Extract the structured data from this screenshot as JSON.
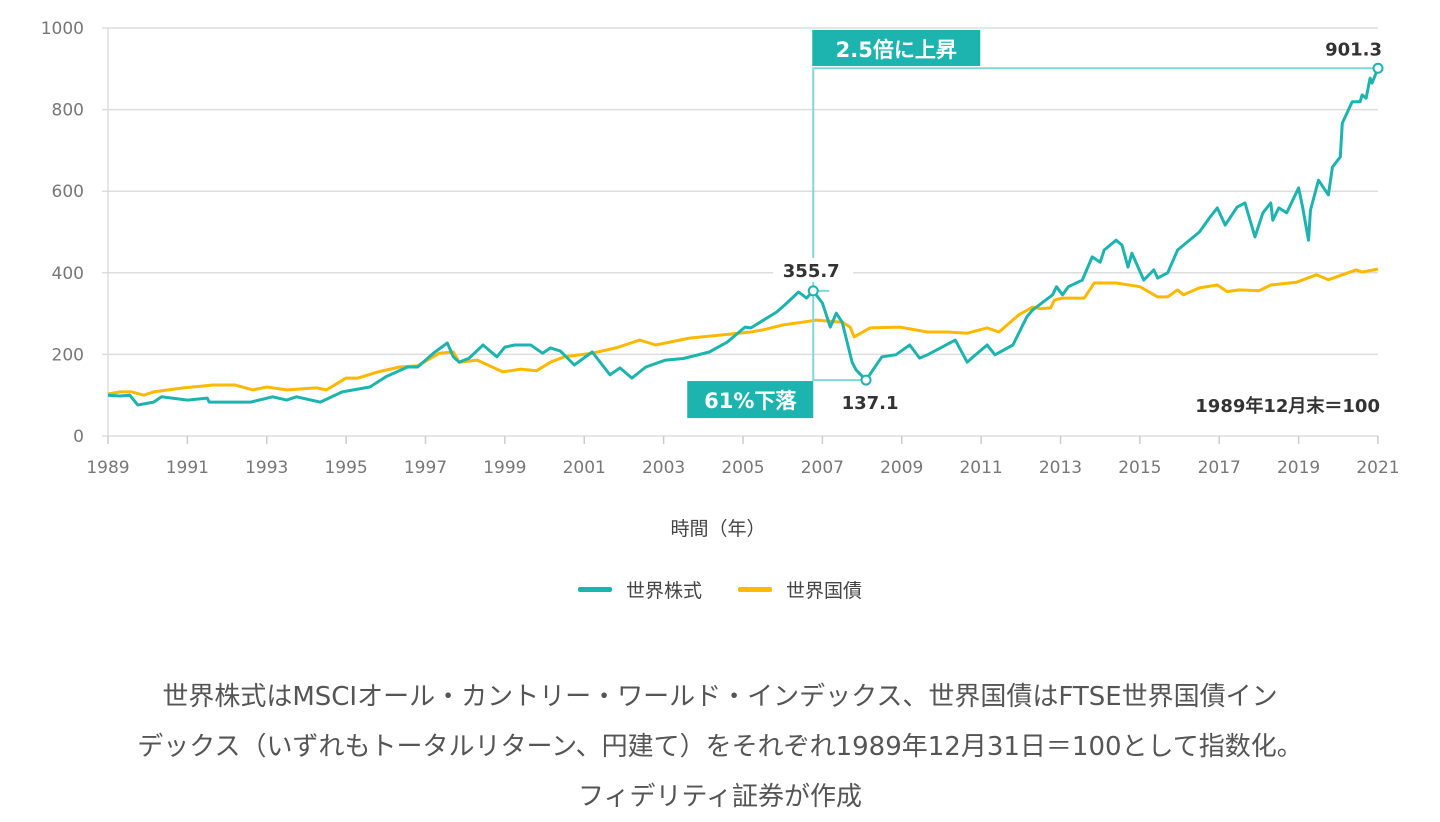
{
  "chart_data": {
    "type": "line",
    "title": "",
    "xlabel": "時間（年）",
    "ylabel": "",
    "xlim": [
      1989,
      2021
    ],
    "ylim": [
      0,
      1000
    ],
    "x_ticks": [
      "1989",
      "1991",
      "1993",
      "1995",
      "1997",
      "1999",
      "2001",
      "2003",
      "2005",
      "2007",
      "2009",
      "2011",
      "2013",
      "2015",
      "2017",
      "2019",
      "2021"
    ],
    "y_ticks": [
      "0",
      "200",
      "400",
      "600",
      "800",
      "1000"
    ],
    "grid": "horizontal",
    "legend_position": "bottom",
    "colors": {
      "stocks": "#1db3ae",
      "bonds": "#ffb800",
      "annotation_line": "#7fd8d6"
    },
    "series": [
      {
        "name": "世界株式",
        "points": [
          [
            1989.0,
            100
          ],
          [
            1989.3,
            98
          ],
          [
            1989.55,
            100
          ],
          [
            1989.75,
            76
          ],
          [
            1990.15,
            83
          ],
          [
            1990.35,
            96
          ],
          [
            1991.0,
            88
          ],
          [
            1991.5,
            93
          ],
          [
            1991.55,
            83
          ],
          [
            1992.6,
            83
          ],
          [
            1993.15,
            96
          ],
          [
            1993.5,
            88
          ],
          [
            1993.75,
            96
          ],
          [
            1994.35,
            83
          ],
          [
            1994.9,
            108
          ],
          [
            1995.6,
            120
          ],
          [
            1996.0,
            145
          ],
          [
            1996.55,
            169
          ],
          [
            1996.8,
            169
          ],
          [
            1997.2,
            203
          ],
          [
            1997.55,
            228
          ],
          [
            1997.7,
            194
          ],
          [
            1997.85,
            181
          ],
          [
            1998.1,
            191
          ],
          [
            1998.45,
            223
          ],
          [
            1998.8,
            194
          ],
          [
            1999.0,
            218
          ],
          [
            1999.25,
            223
          ],
          [
            1999.65,
            223
          ],
          [
            1999.95,
            203
          ],
          [
            2000.15,
            216
          ],
          [
            2000.4,
            208
          ],
          [
            2000.75,
            174
          ],
          [
            2001.2,
            206
          ],
          [
            2001.65,
            150
          ],
          [
            2001.9,
            167
          ],
          [
            2002.2,
            142
          ],
          [
            2002.55,
            169
          ],
          [
            2003.05,
            186
          ],
          [
            2003.5,
            190
          ],
          [
            2004.15,
            206
          ],
          [
            2004.6,
            230
          ],
          [
            2005.05,
            267
          ],
          [
            2005.2,
            265
          ],
          [
            2005.85,
            304
          ],
          [
            2006.05,
            321
          ],
          [
            2006.4,
            353
          ],
          [
            2006.6,
            338
          ],
          [
            2006.77,
            355.7
          ],
          [
            2007.0,
            326
          ],
          [
            2007.2,
            267
          ],
          [
            2007.35,
            301
          ],
          [
            2007.5,
            279
          ],
          [
            2007.75,
            181
          ],
          [
            2007.85,
            162
          ],
          [
            2008.1,
            137.1
          ],
          [
            2008.5,
            194
          ],
          [
            2008.85,
            199
          ],
          [
            2009.2,
            223
          ],
          [
            2009.45,
            191
          ],
          [
            2009.65,
            199
          ],
          [
            2010.35,
            235
          ],
          [
            2010.65,
            181
          ],
          [
            2010.8,
            194
          ],
          [
            2011.15,
            223
          ],
          [
            2011.35,
            199
          ],
          [
            2011.8,
            223
          ],
          [
            2012.15,
            292
          ],
          [
            2012.3,
            309
          ],
          [
            2012.8,
            346
          ],
          [
            2012.9,
            366
          ],
          [
            2013.05,
            346
          ],
          [
            2013.2,
            366
          ],
          [
            2013.55,
            382
          ],
          [
            2013.8,
            439
          ],
          [
            2014.0,
            426
          ],
          [
            2014.1,
            456
          ],
          [
            2014.4,
            480
          ],
          [
            2014.55,
            468
          ],
          [
            2014.7,
            414
          ],
          [
            2014.8,
            448
          ],
          [
            2015.1,
            382
          ],
          [
            2015.35,
            407
          ],
          [
            2015.45,
            387
          ],
          [
            2015.7,
            400
          ],
          [
            2015.95,
            456
          ],
          [
            2016.5,
            500
          ],
          [
            2016.75,
            534
          ],
          [
            2016.95,
            559
          ],
          [
            2017.15,
            517
          ],
          [
            2017.45,
            561
          ],
          [
            2017.65,
            571
          ],
          [
            2017.9,
            488
          ],
          [
            2018.1,
            547
          ],
          [
            2018.3,
            571
          ],
          [
            2018.35,
            529
          ],
          [
            2018.5,
            559
          ],
          [
            2018.7,
            547
          ],
          [
            2019.0,
            608
          ],
          [
            2019.1,
            561
          ],
          [
            2019.25,
            480
          ],
          [
            2019.3,
            554
          ],
          [
            2019.5,
            627
          ],
          [
            2019.75,
            591
          ],
          [
            2019.85,
            659
          ],
          [
            2020.05,
            684
          ],
          [
            2020.1,
            767
          ],
          [
            2020.35,
            819
          ],
          [
            2020.55,
            819
          ],
          [
            2020.6,
            836
          ],
          [
            2020.7,
            828
          ],
          [
            2020.8,
            877
          ],
          [
            2020.85,
            865
          ],
          [
            2021.0,
            901.3
          ]
        ]
      },
      {
        "name": "世界国債",
        "points": [
          [
            1989.0,
            103
          ],
          [
            1989.3,
            108
          ],
          [
            1989.6,
            108
          ],
          [
            1989.9,
            100
          ],
          [
            1990.15,
            108
          ],
          [
            1990.9,
            118
          ],
          [
            1991.65,
            125
          ],
          [
            1992.2,
            125
          ],
          [
            1992.65,
            113
          ],
          [
            1993.0,
            120
          ],
          [
            1993.5,
            113
          ],
          [
            1994.25,
            118
          ],
          [
            1994.5,
            113
          ],
          [
            1995.0,
            142
          ],
          [
            1995.3,
            142
          ],
          [
            1995.8,
            157
          ],
          [
            1996.35,
            169
          ],
          [
            1996.8,
            172
          ],
          [
            1997.35,
            203
          ],
          [
            1997.7,
            206
          ],
          [
            1997.85,
            181
          ],
          [
            1998.3,
            186
          ],
          [
            1998.95,
            157
          ],
          [
            1999.4,
            164
          ],
          [
            1999.8,
            160
          ],
          [
            2000.15,
            181
          ],
          [
            2000.5,
            194
          ],
          [
            2001.2,
            203
          ],
          [
            2001.8,
            216
          ],
          [
            2002.4,
            235
          ],
          [
            2002.8,
            223
          ],
          [
            2003.65,
            240
          ],
          [
            2004.2,
            245
          ],
          [
            2005.2,
            255
          ],
          [
            2005.5,
            260
          ],
          [
            2006.0,
            272
          ],
          [
            2006.5,
            279
          ],
          [
            2006.85,
            284
          ],
          [
            2007.5,
            279
          ],
          [
            2007.7,
            267
          ],
          [
            2007.8,
            243
          ],
          [
            2008.2,
            265
          ],
          [
            2008.95,
            267
          ],
          [
            2009.65,
            255
          ],
          [
            2010.15,
            255
          ],
          [
            2010.65,
            252
          ],
          [
            2011.15,
            265
          ],
          [
            2011.45,
            255
          ],
          [
            2011.95,
            297
          ],
          [
            2012.3,
            316
          ],
          [
            2012.5,
            312
          ],
          [
            2012.75,
            314
          ],
          [
            2012.85,
            333
          ],
          [
            2013.05,
            338
          ],
          [
            2013.6,
            338
          ],
          [
            2013.85,
            375
          ],
          [
            2014.4,
            375
          ],
          [
            2015.0,
            366
          ],
          [
            2015.45,
            341
          ],
          [
            2015.7,
            341
          ],
          [
            2015.95,
            358
          ],
          [
            2016.1,
            346
          ],
          [
            2016.5,
            363
          ],
          [
            2016.95,
            370
          ],
          [
            2017.2,
            354
          ],
          [
            2017.5,
            358
          ],
          [
            2018.0,
            356
          ],
          [
            2018.3,
            370
          ],
          [
            2018.95,
            377
          ],
          [
            2019.45,
            395
          ],
          [
            2019.75,
            383
          ],
          [
            2020.1,
            395
          ],
          [
            2020.45,
            407
          ],
          [
            2020.6,
            402
          ],
          [
            2021.0,
            409
          ]
        ]
      }
    ],
    "annotations": {
      "rise_label": "2.5倍に上昇",
      "fall_label": "61%下落",
      "peak_value": "355.7",
      "trough_value": "137.1",
      "end_value": "901.3",
      "base_note": "1989年12月末＝100",
      "peak": [
        2006.77,
        355.7
      ],
      "trough": [
        2008.1,
        137.1
      ],
      "end": [
        2021.0,
        901.3
      ]
    }
  },
  "caption": {
    "lines": [
      "世界株式はMSCIオール・カントリー・ワールド・インデックス、世界国債はFTSE世界国債イン",
      "デックス（いずれもトータルリターン、円建て）をそれぞれ1989年12月31日＝100として指数化。",
      "フィデリティ証券が作成"
    ]
  }
}
